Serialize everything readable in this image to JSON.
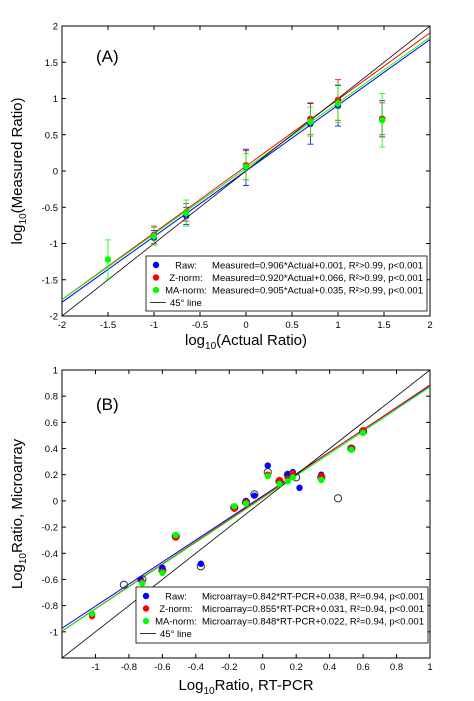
{
  "chart_data": [
    {
      "type": "scatter",
      "panel_label": "(A)",
      "xlabel": "log10(Actual Ratio)",
      "xlabel_parts": {
        "pre": "log",
        "sub": "10",
        "post": "(Actual Ratio)"
      },
      "ylabel_parts": {
        "pre": "log",
        "sub": "10",
        "post": "(Measured Ratio)"
      },
      "xlim": [
        -2,
        2
      ],
      "ylim": [
        -2,
        2
      ],
      "xticks": [
        -2,
        -1.5,
        -1,
        -0.5,
        0,
        0.5,
        1,
        1.5,
        2
      ],
      "xtick_labels": [
        "-2",
        "-1.5",
        "-1",
        "-0.5",
        "0",
        "0.5",
        "1",
        "1.5",
        "2"
      ],
      "yticks": [
        -2,
        -1.5,
        -1,
        -0.5,
        0,
        0.5,
        1,
        1.5,
        2
      ],
      "ytick_labels": [
        "-2",
        "-1.5",
        "-1",
        "-0.5",
        "0",
        "0.5",
        "1",
        "1.5",
        "2"
      ],
      "grid": false,
      "legend_position": "bottom-right",
      "series": [
        {
          "name": "Raw",
          "color": "#0000ff",
          "marker": "filled",
          "points": [
            [
              -1.0,
              -0.92,
              0.1
            ],
            [
              -0.65,
              -0.62,
              0.12
            ],
            [
              0.0,
              0.05,
              0.25
            ],
            [
              0.7,
              0.65,
              0.28
            ],
            [
              1.0,
              0.9,
              0.28
            ],
            [
              1.48,
              0.72,
              0.25
            ]
          ],
          "fit": {
            "slope": 0.906,
            "intercept": 0.001
          },
          "legend_label": "Raw:",
          "legend_eq": "Measured=0.906*Actual+0.001, R²>0.99, p<0.001"
        },
        {
          "name": "Z-norm",
          "color": "#ff0000",
          "marker": "filled",
          "points": [
            [
              -1.0,
              -0.88,
              0.12
            ],
            [
              -0.65,
              -0.57,
              0.12
            ],
            [
              0.0,
              0.08,
              0.2
            ],
            [
              0.7,
              0.72,
              0.22
            ],
            [
              1.0,
              0.98,
              0.28
            ],
            [
              1.48,
              0.72,
              0.22
            ]
          ],
          "fit": {
            "slope": 0.92,
            "intercept": 0.066
          },
          "legend_label": "Z-norm:",
          "legend_eq": "Measured=0.920*Actual+0.066, R²>0.99, p<0.001"
        },
        {
          "name": "MA-norm",
          "color": "#00ff00",
          "marker": "filled",
          "points": [
            [
              -1.5,
              -1.22,
              0.27
            ],
            [
              -1.0,
              -0.9,
              0.12
            ],
            [
              -0.65,
              -0.58,
              0.18
            ],
            [
              0.0,
              0.06,
              0.18
            ],
            [
              0.7,
              0.68,
              0.2
            ],
            [
              1.0,
              0.93,
              0.26
            ],
            [
              1.48,
              0.7,
              0.37
            ]
          ],
          "fit": {
            "slope": 0.905,
            "intercept": 0.035
          },
          "legend_label": "MA-norm:",
          "legend_eq": "Measured=0.905*Actual+0.035, R²>0.99, p<0.001"
        },
        {
          "name": "45° line",
          "color": "#000000",
          "marker": "none",
          "fit": {
            "slope": 1,
            "intercept": 0
          },
          "legend_label": "45° line",
          "legend_eq": ""
        }
      ]
    },
    {
      "type": "scatter",
      "panel_label": "(B)",
      "xlabel": "Log10Ratio, RT-PCR",
      "xlabel_parts": {
        "pre": "Log",
        "sub": "10",
        "post": "Ratio, RT-PCR"
      },
      "ylabel_parts": {
        "pre": "Log",
        "sub": "10",
        "post": "Ratio, Microarray"
      },
      "xlim": [
        -1.2,
        1
      ],
      "ylim": [
        -1.2,
        1
      ],
      "xticks": [
        -1,
        -0.8,
        -0.6,
        -0.4,
        -0.2,
        0,
        0.2,
        0.4,
        0.6,
        0.8,
        1
      ],
      "xtick_labels": [
        "-1",
        "-0.8",
        "-0.6",
        "-0.4",
        "-0.2",
        "0",
        "0.2",
        "0.4",
        "0.6",
        "0.8",
        "1"
      ],
      "yticks": [
        -1,
        -0.8,
        -0.6,
        -0.4,
        -0.2,
        0,
        0.2,
        0.4,
        0.6,
        0.8,
        1
      ],
      "ytick_labels": [
        "-1",
        "-0.8",
        "-0.6",
        "-0.4",
        "-0.2",
        "0",
        "0.2",
        "0.4",
        "0.6",
        "0.8",
        "1"
      ],
      "grid": false,
      "legend_position": "bottom-right",
      "open_points": [
        [
          -0.83,
          -0.64
        ],
        [
          -0.72,
          -0.6
        ],
        [
          -0.6,
          -0.53
        ],
        [
          -0.52,
          -0.27
        ],
        [
          -0.37,
          -0.5
        ],
        [
          -0.17,
          -0.05
        ],
        [
          -0.1,
          -0.01
        ],
        [
          -0.05,
          0.05
        ],
        [
          0.03,
          0.22
        ],
        [
          0.1,
          0.15
        ],
        [
          0.15,
          0.2
        ],
        [
          0.2,
          0.18
        ],
        [
          0.35,
          0.18
        ],
        [
          0.45,
          0.02
        ],
        [
          0.53,
          0.4
        ],
        [
          0.6,
          0.53
        ]
      ],
      "series": [
        {
          "name": "Raw",
          "color": "#0000ff",
          "marker": "filled",
          "points": [
            [
              -1.02,
              -0.87
            ],
            [
              -0.73,
              -0.6
            ],
            [
              -0.6,
              -0.51
            ],
            [
              -0.52,
              -0.27
            ],
            [
              -0.37,
              -0.48
            ],
            [
              -0.17,
              -0.05
            ],
            [
              -0.1,
              0.0
            ],
            [
              -0.05,
              0.04
            ],
            [
              0.03,
              0.27
            ],
            [
              0.1,
              0.14
            ],
            [
              0.15,
              0.2
            ],
            [
              0.18,
              0.22
            ],
            [
              0.22,
              0.1
            ],
            [
              0.35,
              0.2
            ],
            [
              0.53,
              0.4
            ],
            [
              0.6,
              0.53
            ]
          ],
          "fit": {
            "slope": 0.842,
            "intercept": 0.038
          },
          "legend_label": "Raw:",
          "legend_eq": "Microarray=0.842*RT-PCR+0.038, R²=0.94, p<0.001"
        },
        {
          "name": "Z-norm",
          "color": "#ff0000",
          "marker": "filled",
          "points": [
            [
              -1.02,
              -0.88
            ],
            [
              -0.72,
              -0.62
            ],
            [
              -0.6,
              -0.54
            ],
            [
              -0.52,
              -0.28
            ],
            [
              -0.17,
              -0.06
            ],
            [
              -0.1,
              -0.01
            ],
            [
              0.03,
              0.2
            ],
            [
              0.1,
              0.16
            ],
            [
              0.15,
              0.17
            ],
            [
              0.18,
              0.21
            ],
            [
              0.35,
              0.19
            ],
            [
              0.53,
              0.4
            ],
            [
              0.6,
              0.54
            ]
          ],
          "fit": {
            "slope": 0.855,
            "intercept": 0.031
          },
          "legend_label": "Z-norm:",
          "legend_eq": "Microarray=0.855*RT-PCR+0.031, R²=0.94, p<0.001"
        },
        {
          "name": "MA-norm",
          "color": "#00ff00",
          "marker": "filled",
          "points": [
            [
              -1.02,
              -0.86
            ],
            [
              -0.72,
              -0.63
            ],
            [
              -0.6,
              -0.55
            ],
            [
              -0.52,
              -0.26
            ],
            [
              -0.17,
              -0.04
            ],
            [
              -0.1,
              -0.02
            ],
            [
              0.03,
              0.19
            ],
            [
              0.1,
              0.13
            ],
            [
              0.15,
              0.15
            ],
            [
              0.18,
              0.18
            ],
            [
              0.35,
              0.16
            ],
            [
              0.53,
              0.39
            ],
            [
              0.6,
              0.52
            ]
          ],
          "fit": {
            "slope": 0.848,
            "intercept": 0.022
          },
          "legend_label": "MA-norm:",
          "legend_eq": "Microarray=0.848*RT-PCR+0.022, R²=0.94, p<0.001"
        },
        {
          "name": "45° line",
          "color": "#000000",
          "marker": "none",
          "fit": {
            "slope": 1,
            "intercept": 0
          },
          "legend_label": "45° line",
          "legend_eq": ""
        }
      ]
    }
  ]
}
